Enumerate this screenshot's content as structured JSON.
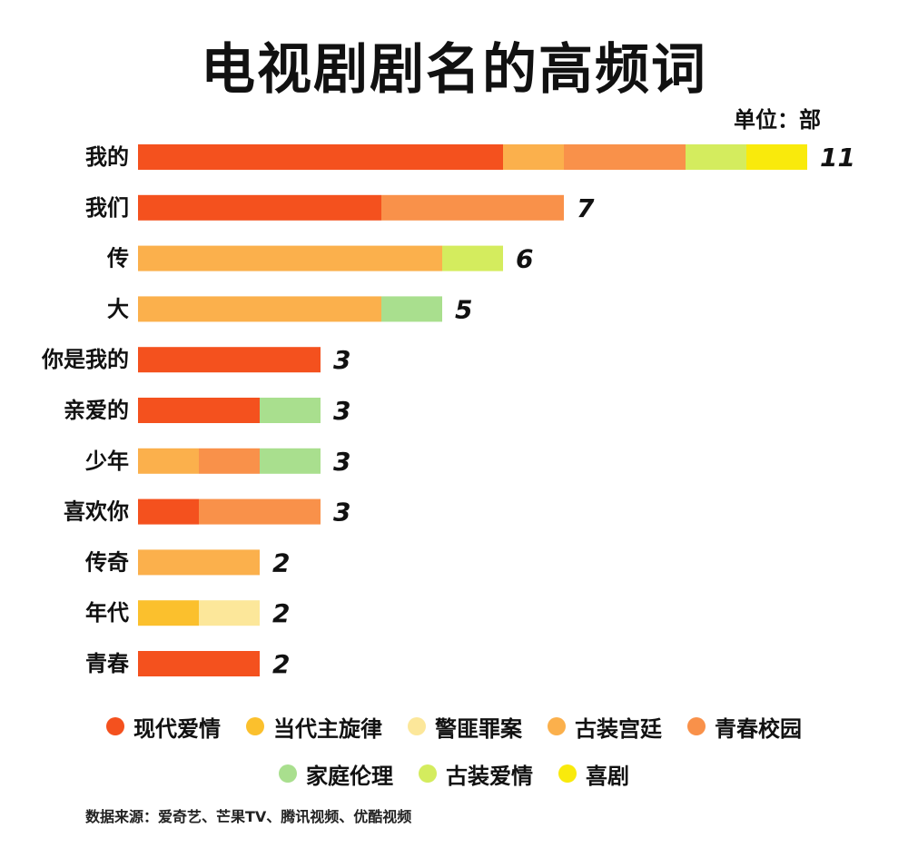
{
  "title": "电视剧剧名的高频词",
  "unit_label": "单位：部",
  "source": "数据来源：爱奇艺、芒果TV、腾讯视频、优酷视频",
  "chart_data": {
    "type": "bar",
    "orientation": "horizontal",
    "stacked": true,
    "title": "电视剧剧名的高频词",
    "categories": [
      "我的",
      "我们",
      "传",
      "大",
      "你是我的",
      "亲爱的",
      "少年",
      "喜欢你",
      "传奇",
      "年代",
      "青春"
    ],
    "series": [
      {
        "name": "现代爱情",
        "color": "#F4511E",
        "values": [
          6,
          4,
          0,
          0,
          3,
          2,
          0,
          1,
          0,
          0,
          2
        ]
      },
      {
        "name": "当代主旋律",
        "color": "#FBC02D",
        "values": [
          0,
          0,
          0,
          0,
          0,
          0,
          0,
          0,
          0,
          1,
          0
        ]
      },
      {
        "name": "警匪罪案",
        "color": "#FCE79A",
        "values": [
          0,
          0,
          0,
          0,
          0,
          0,
          0,
          0,
          0,
          1,
          0
        ]
      },
      {
        "name": "古装宫廷",
        "color": "#FBB04C",
        "values": [
          1,
          0,
          5,
          4,
          0,
          0,
          1,
          0,
          2,
          0,
          0
        ]
      },
      {
        "name": "青春校园",
        "color": "#F9914A",
        "values": [
          2,
          3,
          0,
          0,
          0,
          0,
          1,
          2,
          0,
          0,
          0
        ]
      },
      {
        "name": "家庭伦理",
        "color": "#A9DF8E",
        "values": [
          0,
          0,
          0,
          1,
          0,
          1,
          1,
          0,
          0,
          0,
          0
        ]
      },
      {
        "name": "古装爱情",
        "color": "#D4EC5E",
        "values": [
          1,
          0,
          1,
          0,
          0,
          0,
          0,
          0,
          0,
          0,
          0
        ]
      },
      {
        "name": "喜剧",
        "color": "#F9EA0C",
        "values": [
          1,
          0,
          0,
          0,
          0,
          0,
          0,
          0,
          0,
          0,
          0
        ]
      }
    ],
    "totals": [
      11,
      7,
      6,
      5,
      3,
      3,
      3,
      3,
      2,
      2,
      2
    ],
    "xlim": [
      0,
      11
    ],
    "grid": false,
    "legend_position": "bottom",
    "legend_rows": [
      [
        "现代爱情",
        "当代主旋律",
        "警匪罪案",
        "古装宫廷",
        "青春校园"
      ],
      [
        "家庭伦理",
        "古装爱情",
        "喜剧"
      ]
    ]
  }
}
